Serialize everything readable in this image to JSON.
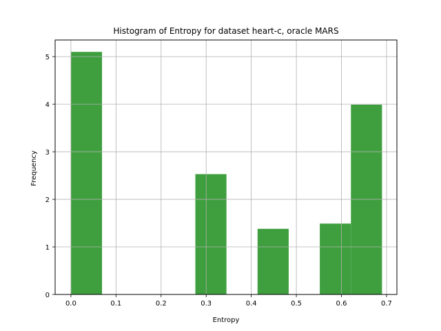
{
  "chart_data": {
    "type": "bar",
    "title": "Histogram of Entropy for dataset heart-c, oracle MARS",
    "xlabel": "Entropy",
    "ylabel": "Frequency",
    "xlim": [
      -0.035,
      0.723
    ],
    "ylim": [
      0,
      5.35
    ],
    "xticks": [
      0.0,
      0.1,
      0.2,
      0.3,
      0.4,
      0.5,
      0.6,
      0.7
    ],
    "yticks": [
      0,
      1,
      2,
      3,
      4,
      5
    ],
    "grid": true,
    "bar_color": "#3f9f3f",
    "bins": [
      {
        "x0": 0.0,
        "x1": 0.069,
        "value": 5.1
      },
      {
        "x0": 0.069,
        "x1": 0.138,
        "value": 0
      },
      {
        "x0": 0.138,
        "x1": 0.207,
        "value": 0
      },
      {
        "x0": 0.207,
        "x1": 0.276,
        "value": 0
      },
      {
        "x0": 0.276,
        "x1": 0.345,
        "value": 2.53
      },
      {
        "x0": 0.345,
        "x1": 0.414,
        "value": 0
      },
      {
        "x0": 0.414,
        "x1": 0.483,
        "value": 1.38
      },
      {
        "x0": 0.483,
        "x1": 0.552,
        "value": 0
      },
      {
        "x0": 0.552,
        "x1": 0.621,
        "value": 1.49
      },
      {
        "x0": 0.621,
        "x1": 0.69,
        "value": 3.99
      }
    ]
  }
}
